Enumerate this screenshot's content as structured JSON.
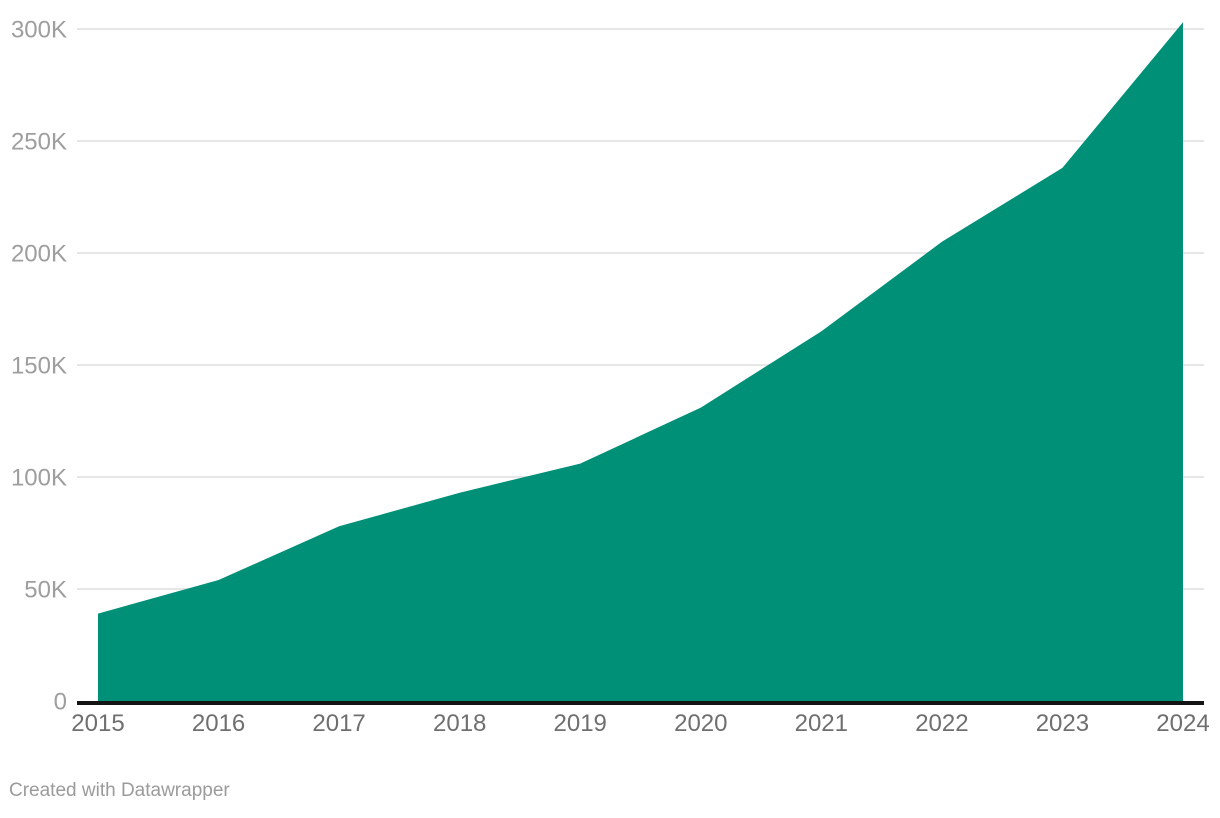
{
  "footer": {
    "attribution": "Created with Datawrapper"
  },
  "chart_data": {
    "type": "area",
    "title": "",
    "xlabel": "",
    "ylabel": "",
    "x": [
      "2015",
      "2016",
      "2017",
      "2018",
      "2019",
      "2020",
      "2021",
      "2022",
      "2023",
      "2024"
    ],
    "series": [
      {
        "name": "value",
        "values": [
          39000,
          54000,
          78000,
          93000,
          106000,
          131000,
          165000,
          205000,
          238000,
          303000
        ]
      }
    ],
    "ylim": [
      0,
      300000
    ],
    "grid": true,
    "legend": "none",
    "y_ticks": [
      {
        "value": 0,
        "label": "0"
      },
      {
        "value": 50000,
        "label": "50K"
      },
      {
        "value": 100000,
        "label": "100K"
      },
      {
        "value": 150000,
        "label": "150K"
      },
      {
        "value": 200000,
        "label": "200K"
      },
      {
        "value": 250000,
        "label": "250K"
      },
      {
        "value": 300000,
        "label": "300K"
      }
    ],
    "colors": {
      "area": "#009077",
      "gridline": "#e6e6e6",
      "axis_line": "#141414",
      "x_tick_label": "#6f6f6f",
      "y_tick_label": "#9e9e9e",
      "attribution": "#9b9b9b"
    }
  }
}
